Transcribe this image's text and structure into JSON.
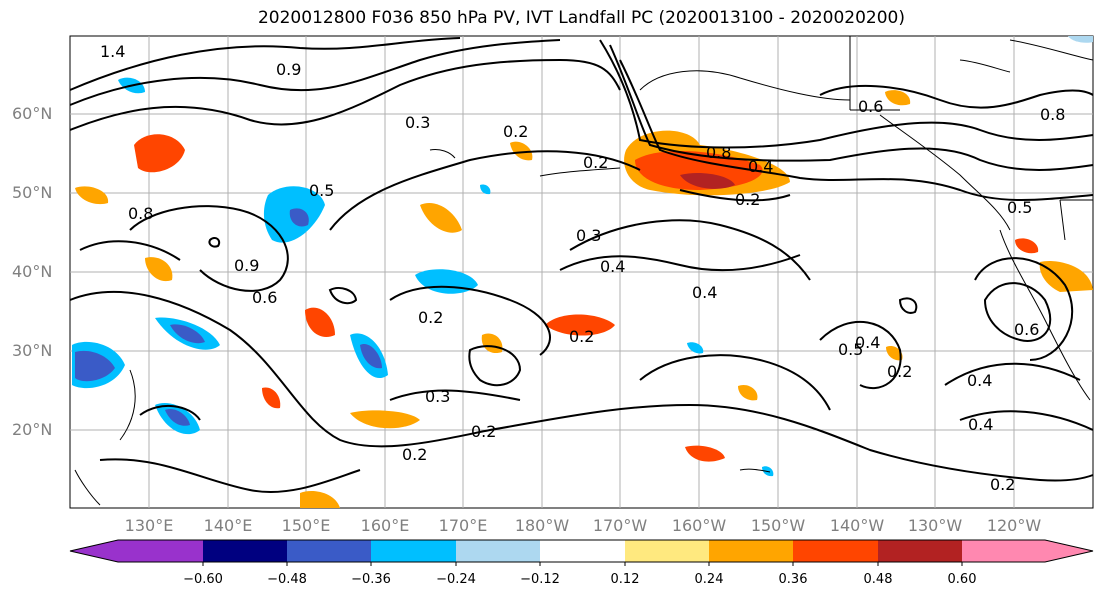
{
  "title": "2020012800 F036 850 hPa PV, IVT Landfall PC (2020013100 - 2020020200)",
  "lat_labels": [
    "60°N",
    "50°N",
    "40°N",
    "30°N",
    "20°N"
  ],
  "lon_labels": [
    "130°E",
    "140°E",
    "150°E",
    "160°E",
    "170°E",
    "180°W",
    "170°W",
    "160°W",
    "150°W",
    "140°W",
    "130°W",
    "120°W"
  ],
  "colorbar": {
    "ticks": [
      "−0.60",
      "−0.48",
      "−0.36",
      "−0.24",
      "−0.12",
      "0.12",
      "0.24",
      "0.36",
      "0.48",
      "0.60"
    ],
    "colors": [
      "#9932cc",
      "#000080",
      "#3a5bc7",
      "#00bfff",
      "#add8f0",
      "#ffffff",
      "#ffe97f",
      "#ffa500",
      "#ff4500",
      "#b22222",
      "#ff88b0"
    ]
  },
  "contour_labels": [
    "1.4",
    "0.9",
    "0.3",
    "0.2",
    "0.2",
    "0.6",
    "0.8",
    "0.4",
    "0.2",
    "0.5",
    "0.5",
    "0.8",
    "0.9",
    "0.6",
    "0.3",
    "0.4",
    "0.4",
    "0.2",
    "0.2",
    "0.6",
    "0.4",
    "0.5",
    "0.2",
    "0.4",
    "0.4",
    "0.2",
    "0.3",
    "0.2",
    "0.2",
    "0.8"
  ]
}
